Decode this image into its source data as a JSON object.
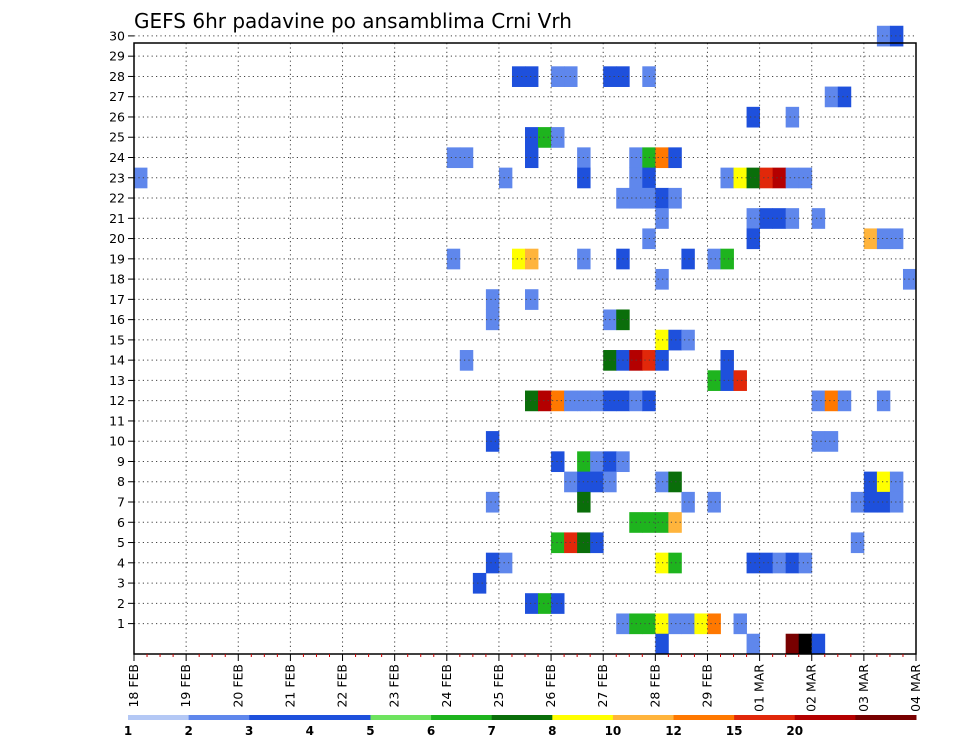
{
  "chart_data": {
    "type": "heatmap",
    "title": "GEFS 6hr padavine po ansamblima Crni Vrh",
    "xlabel": "",
    "ylabel": "",
    "x_tick_labels": [
      "18 FEB",
      "19 FEB",
      "20 FEB",
      "21 FEB",
      "22 FEB",
      "23 FEB",
      "24 FEB",
      "25 FEB",
      "26 FEB",
      "27 FEB",
      "28 FEB",
      "29 FEB",
      "01 MAR",
      "02 MAR",
      "03 MAR",
      "04 MAR"
    ],
    "x_ticks_per_label": 4,
    "x_steps_total": 60,
    "y_tick_labels": [
      "1",
      "2",
      "3",
      "4",
      "5",
      "6",
      "7",
      "8",
      "9",
      "10",
      "11",
      "12",
      "13",
      "14",
      "15",
      "16",
      "17",
      "18",
      "19",
      "20",
      "21",
      "22",
      "23",
      "24",
      "25",
      "26",
      "27",
      "28",
      "29",
      "30"
    ],
    "ylim": [
      0,
      30
    ],
    "grid": true,
    "colorbar": {
      "labels": [
        "1",
        "2",
        "3",
        "4",
        "5",
        "6",
        "7",
        "8",
        "10",
        "12",
        "15",
        "20"
      ],
      "colors": [
        "#b4c8f5",
        "#5f87ec",
        "#1e50dc",
        "#1e50dc",
        "#6ee35f",
        "#1eb41e",
        "#0a6e0a",
        "#ffff00",
        "#ffb43c",
        "#ff7800",
        "#e1280a",
        "#b40000",
        "#780000"
      ]
    },
    "cells": [
      {
        "m": 30,
        "t": 57,
        "l": 1
      },
      {
        "m": 30,
        "t": 58,
        "l": 3
      },
      {
        "m": 28,
        "t": 29,
        "l": 2
      },
      {
        "m": 28,
        "t": 30,
        "l": 2
      },
      {
        "m": 28,
        "t": 32,
        "l": 1
      },
      {
        "m": 28,
        "t": 33,
        "l": 1
      },
      {
        "m": 28,
        "t": 36,
        "l": 2
      },
      {
        "m": 28,
        "t": 37,
        "l": 2
      },
      {
        "m": 28,
        "t": 39,
        "l": 1
      },
      {
        "m": 27,
        "t": 53,
        "l": 1
      },
      {
        "m": 27,
        "t": 54,
        "l": 3
      },
      {
        "m": 26,
        "t": 47,
        "l": 2
      },
      {
        "m": 26,
        "t": 50,
        "l": 1
      },
      {
        "m": 25,
        "t": 30,
        "l": 2
      },
      {
        "m": 25,
        "t": 31,
        "l": 5
      },
      {
        "m": 25,
        "t": 32,
        "l": 1
      },
      {
        "m": 24,
        "t": 24,
        "l": 1
      },
      {
        "m": 24,
        "t": 25,
        "l": 1
      },
      {
        "m": 24,
        "t": 30,
        "l": 2
      },
      {
        "m": 24,
        "t": 34,
        "l": 1
      },
      {
        "m": 24,
        "t": 38,
        "l": 1
      },
      {
        "m": 24,
        "t": 39,
        "l": 5
      },
      {
        "m": 24,
        "t": 40,
        "l": 9
      },
      {
        "m": 24,
        "t": 41,
        "l": 2
      },
      {
        "m": 23,
        "t": 0,
        "l": 1
      },
      {
        "m": 23,
        "t": 28,
        "l": 1
      },
      {
        "m": 23,
        "t": 34,
        "l": 2
      },
      {
        "m": 23,
        "t": 38,
        "l": 1
      },
      {
        "m": 23,
        "t": 39,
        "l": 3
      },
      {
        "m": 23,
        "t": 45,
        "l": 1
      },
      {
        "m": 23,
        "t": 46,
        "l": 7
      },
      {
        "m": 23,
        "t": 47,
        "l": 6
      },
      {
        "m": 23,
        "t": 48,
        "l": 10
      },
      {
        "m": 23,
        "t": 49,
        "l": 11
      },
      {
        "m": 23,
        "t": 50,
        "l": 1
      },
      {
        "m": 23,
        "t": 51,
        "l": 1
      },
      {
        "m": 22,
        "t": 37,
        "l": 1
      },
      {
        "m": 22,
        "t": 38,
        "l": 1
      },
      {
        "m": 22,
        "t": 39,
        "l": 1
      },
      {
        "m": 22,
        "t": 40,
        "l": 2
      },
      {
        "m": 22,
        "t": 41,
        "l": 1
      },
      {
        "m": 21,
        "t": 40,
        "l": 1
      },
      {
        "m": 21,
        "t": 47,
        "l": 1
      },
      {
        "m": 21,
        "t": 48,
        "l": 2
      },
      {
        "m": 21,
        "t": 49,
        "l": 2
      },
      {
        "m": 21,
        "t": 50,
        "l": 1
      },
      {
        "m": 21,
        "t": 52,
        "l": 1
      },
      {
        "m": 20,
        "t": 39,
        "l": 1
      },
      {
        "m": 20,
        "t": 47,
        "l": 3
      },
      {
        "m": 20,
        "t": 56,
        "l": 8
      },
      {
        "m": 20,
        "t": 57,
        "l": 1
      },
      {
        "m": 20,
        "t": 58,
        "l": 1
      },
      {
        "m": 19,
        "t": 24,
        "l": 1
      },
      {
        "m": 19,
        "t": 29,
        "l": 7
      },
      {
        "m": 19,
        "t": 30,
        "l": 8
      },
      {
        "m": 19,
        "t": 34,
        "l": 1
      },
      {
        "m": 19,
        "t": 37,
        "l": 2
      },
      {
        "m": 19,
        "t": 42,
        "l": 2
      },
      {
        "m": 19,
        "t": 44,
        "l": 1
      },
      {
        "m": 19,
        "t": 45,
        "l": 5
      },
      {
        "m": 18,
        "t": 40,
        "l": 1
      },
      {
        "m": 18,
        "t": 59,
        "l": 1
      },
      {
        "m": 17,
        "t": 30,
        "l": 1
      },
      {
        "m": 17,
        "t": 27,
        "l": 1
      },
      {
        "m": 16,
        "t": 27,
        "l": 1
      },
      {
        "m": 16,
        "t": 36,
        "l": 1
      },
      {
        "m": 16,
        "t": 37,
        "l": 6
      },
      {
        "m": 15,
        "t": 40,
        "l": 7
      },
      {
        "m": 15,
        "t": 41,
        "l": 2
      },
      {
        "m": 15,
        "t": 42,
        "l": 1
      },
      {
        "m": 14,
        "t": 25,
        "l": 1
      },
      {
        "m": 14,
        "t": 36,
        "l": 6
      },
      {
        "m": 14,
        "t": 37,
        "l": 3
      },
      {
        "m": 14,
        "t": 38,
        "l": 11
      },
      {
        "m": 14,
        "t": 39,
        "l": 10
      },
      {
        "m": 14,
        "t": 40,
        "l": 2
      },
      {
        "m": 14,
        "t": 45,
        "l": 2
      },
      {
        "m": 13,
        "t": 44,
        "l": 5
      },
      {
        "m": 13,
        "t": 45,
        "l": 3
      },
      {
        "m": 13,
        "t": 46,
        "l": 10
      },
      {
        "m": 12,
        "t": 30,
        "l": 6
      },
      {
        "m": 12,
        "t": 31,
        "l": 11
      },
      {
        "m": 12,
        "t": 32,
        "l": 9
      },
      {
        "m": 12,
        "t": 33,
        "l": 1
      },
      {
        "m": 12,
        "t": 34,
        "l": 1
      },
      {
        "m": 12,
        "t": 35,
        "l": 1
      },
      {
        "m": 12,
        "t": 36,
        "l": 2
      },
      {
        "m": 12,
        "t": 37,
        "l": 2
      },
      {
        "m": 12,
        "t": 38,
        "l": 1
      },
      {
        "m": 12,
        "t": 39,
        "l": 2
      },
      {
        "m": 12,
        "t": 52,
        "l": 1
      },
      {
        "m": 12,
        "t": 53,
        "l": 9
      },
      {
        "m": 12,
        "t": 54,
        "l": 1
      },
      {
        "m": 12,
        "t": 57,
        "l": 1
      },
      {
        "m": 10,
        "t": 27,
        "l": 2
      },
      {
        "m": 10,
        "t": 52,
        "l": 1
      },
      {
        "m": 10,
        "t": 53,
        "l": 1
      },
      {
        "m": 9,
        "t": 32,
        "l": 2
      },
      {
        "m": 9,
        "t": 34,
        "l": 5
      },
      {
        "m": 9,
        "t": 35,
        "l": 1
      },
      {
        "m": 9,
        "t": 36,
        "l": 2
      },
      {
        "m": 9,
        "t": 37,
        "l": 1
      },
      {
        "m": 8,
        "t": 33,
        "l": 1
      },
      {
        "m": 8,
        "t": 34,
        "l": 2
      },
      {
        "m": 8,
        "t": 35,
        "l": 3
      },
      {
        "m": 8,
        "t": 36,
        "l": 1
      },
      {
        "m": 8,
        "t": 40,
        "l": 1
      },
      {
        "m": 8,
        "t": 41,
        "l": 6
      },
      {
        "m": 8,
        "t": 56,
        "l": 3
      },
      {
        "m": 8,
        "t": 57,
        "l": 7
      },
      {
        "m": 8,
        "t": 58,
        "l": 1
      },
      {
        "m": 7,
        "t": 27,
        "l": 1
      },
      {
        "m": 7,
        "t": 34,
        "l": 6
      },
      {
        "m": 7,
        "t": 42,
        "l": 1
      },
      {
        "m": 7,
        "t": 44,
        "l": 1
      },
      {
        "m": 7,
        "t": 55,
        "l": 1
      },
      {
        "m": 7,
        "t": 56,
        "l": 3
      },
      {
        "m": 7,
        "t": 57,
        "l": 2
      },
      {
        "m": 7,
        "t": 58,
        "l": 1
      },
      {
        "m": 6,
        "t": 38,
        "l": 5
      },
      {
        "m": 6,
        "t": 39,
        "l": 5
      },
      {
        "m": 6,
        "t": 40,
        "l": 5
      },
      {
        "m": 6,
        "t": 41,
        "l": 8
      },
      {
        "m": 5,
        "t": 32,
        "l": 5
      },
      {
        "m": 5,
        "t": 33,
        "l": 10
      },
      {
        "m": 5,
        "t": 34,
        "l": 6
      },
      {
        "m": 5,
        "t": 35,
        "l": 2
      },
      {
        "m": 5,
        "t": 55,
        "l": 1
      },
      {
        "m": 4,
        "t": 27,
        "l": 2
      },
      {
        "m": 4,
        "t": 28,
        "l": 1
      },
      {
        "m": 4,
        "t": 40,
        "l": 7
      },
      {
        "m": 4,
        "t": 41,
        "l": 5
      },
      {
        "m": 4,
        "t": 47,
        "l": 2
      },
      {
        "m": 4,
        "t": 48,
        "l": 2
      },
      {
        "m": 4,
        "t": 49,
        "l": 1
      },
      {
        "m": 4,
        "t": 50,
        "l": 3
      },
      {
        "m": 4,
        "t": 51,
        "l": 1
      },
      {
        "m": 3,
        "t": 26,
        "l": 3
      },
      {
        "m": 2,
        "t": 30,
        "l": 2
      },
      {
        "m": 2,
        "t": 31,
        "l": 5
      },
      {
        "m": 2,
        "t": 32,
        "l": 2
      },
      {
        "m": 1,
        "t": 37,
        "l": 1
      },
      {
        "m": 1,
        "t": 38,
        "l": 5
      },
      {
        "m": 1,
        "t": 39,
        "l": 5
      },
      {
        "m": 1,
        "t": 40,
        "l": 7
      },
      {
        "m": 1,
        "t": 41,
        "l": 1
      },
      {
        "m": 1,
        "t": 42,
        "l": 1
      },
      {
        "m": 1,
        "t": 43,
        "l": 7
      },
      {
        "m": 1,
        "t": 44,
        "l": 9
      },
      {
        "m": 1,
        "t": 46,
        "l": 1
      },
      {
        "m": 0,
        "t": 40,
        "l": 3
      },
      {
        "m": 0,
        "t": 47,
        "l": 1
      },
      {
        "m": 0,
        "t": 50,
        "l": 12
      },
      {
        "m": 0,
        "t": 51,
        "l": 13
      },
      {
        "m": 0,
        "t": 52,
        "l": 2
      }
    ]
  }
}
